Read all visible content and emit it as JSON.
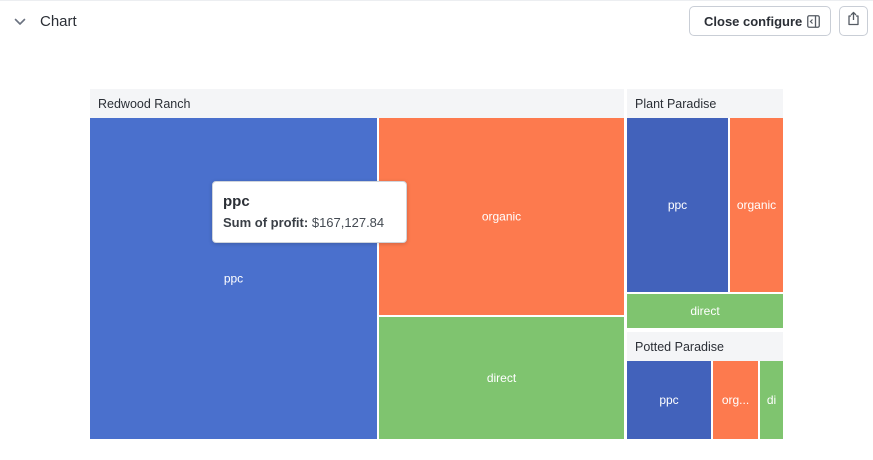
{
  "header": {
    "title": "Chart",
    "close_configure_label": "Close configure"
  },
  "tooltip": {
    "name": "ppc",
    "metric_label": "Sum of profit:",
    "metric_value": "$167,127.84"
  },
  "colors": {
    "ppc": "#4a70cd",
    "ppc_dark": "#4262bb",
    "organic": "#fd7a4e",
    "direct": "#7fc46f",
    "group_header_bg": "#f4f5f7",
    "background": "#ffffff"
  },
  "icons": {
    "collapse": "chevron-down-icon",
    "configure": "sidebar-panel-icon",
    "share": "share-icon"
  },
  "chart_data": {
    "type": "treemap",
    "metric": "Sum of profit",
    "groups": [
      {
        "name": "Redwood Ranch",
        "children": [
          {
            "name": "ppc",
            "value": 167127.84,
            "display": "ppc"
          },
          {
            "name": "organic",
            "display": "organic"
          },
          {
            "name": "direct",
            "display": "direct"
          }
        ]
      },
      {
        "name": "Plant Paradise",
        "children": [
          {
            "name": "ppc",
            "display": "ppc"
          },
          {
            "name": "organic",
            "display": "organic"
          },
          {
            "name": "direct",
            "display": "direct"
          }
        ]
      },
      {
        "name": "Potted Paradise",
        "children": [
          {
            "name": "ppc",
            "display": "ppc"
          },
          {
            "name": "organic",
            "display": "org..."
          },
          {
            "name": "direct",
            "display": "di"
          }
        ]
      }
    ]
  }
}
